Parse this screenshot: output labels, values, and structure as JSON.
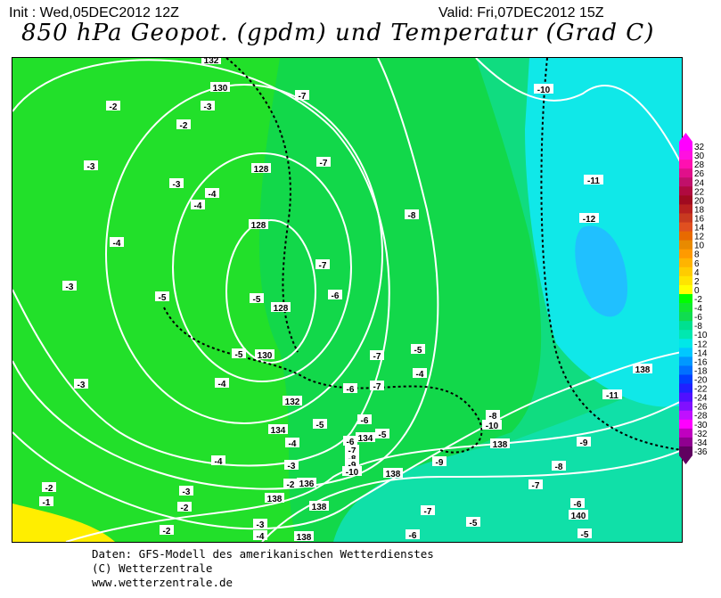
{
  "header": {
    "init": "Init : Wed,05DEC2012 12Z",
    "valid": "Valid: Fri,07DEC2012 15Z",
    "title": "850 hPa Geopot. (gpdm) und Temperatur (Grad C)"
  },
  "colorbar": {
    "labels": [
      "32",
      "30",
      "28",
      "26",
      "24",
      "22",
      "20",
      "18",
      "16",
      "14",
      "12",
      "10",
      "8",
      "6",
      "4",
      "2",
      "0",
      "-2",
      "-4",
      "-6",
      "-8",
      "-10",
      "-12",
      "-14",
      "-16",
      "-18",
      "-20",
      "-22",
      "-24",
      "-26",
      "-28",
      "-30",
      "-32",
      "-34",
      "-36"
    ],
    "colors": [
      "#ff00ff",
      "#ff10e0",
      "#ff10b0",
      "#e0108a",
      "#c0106a",
      "#b00a40",
      "#a00a20",
      "#b82020",
      "#c83a20",
      "#e05020",
      "#e86a00",
      "#e88a00",
      "#ff9a00",
      "#ffb400",
      "#ffcc00",
      "#ffe400",
      "#ffff00",
      "#00ff00",
      "#10e830",
      "#10dc50",
      "#00e090",
      "#00e8b0",
      "#00e8e8",
      "#00c8ff",
      "#0098ff",
      "#0070ff",
      "#0040ff",
      "#2020ff",
      "#5010ff",
      "#8010ff",
      "#c010ff",
      "#ff00ff",
      "#c000c0",
      "#900090",
      "#600060"
    ]
  },
  "map": {
    "colors": {
      "green_light": "#22e02a",
      "green": "#12d84a",
      "green_cyan": "#10dc80",
      "cyan_green": "#10e0a8",
      "cyan": "#10e8e8",
      "blue": "#20c0ff",
      "yellow": "#ffee00"
    },
    "temp_labels": [
      "-2",
      "-3",
      "-2",
      "-3",
      "-3",
      "-4",
      "-4",
      "-4",
      "-3",
      "-5",
      "-5",
      "-3",
      "-4",
      "-5",
      "-7",
      "-7",
      "-8",
      "-7",
      "-6",
      "-7",
      "-5",
      "-4",
      "-6",
      "-7",
      "-5",
      "-6",
      "-5",
      "-4",
      "-6",
      "-7",
      "-8",
      "-9",
      "-10",
      "-3",
      "-4",
      "-2",
      "-3",
      "-2",
      "-2",
      "-3",
      "-4",
      "-2",
      "-1",
      "-10",
      "-11",
      "-12",
      "-11",
      "-8",
      "-10",
      "-9",
      "-9",
      "-8",
      "-7",
      "-6",
      "-7",
      "-5",
      "-5",
      "-6"
    ],
    "geopot_labels": [
      "132",
      "130",
      "128",
      "128",
      "128",
      "130",
      "132",
      "134",
      "134",
      "136",
      "138",
      "138",
      "138",
      "138",
      "138",
      "140",
      "138"
    ]
  },
  "footer": {
    "line1": "Daten: GFS-Modell des amerikanischen Wetterdienstes",
    "line2": "(C) Wetterzentrale",
    "line3": "www.wetterzentrale.de"
  }
}
